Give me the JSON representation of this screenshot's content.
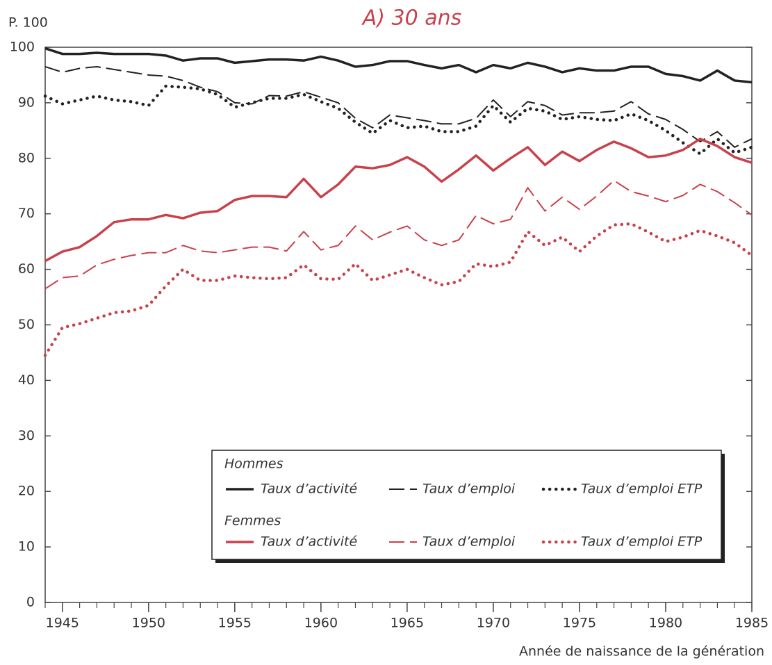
{
  "chart_data": {
    "type": "line",
    "title": "A) 30 ans",
    "ylabel": "P. 100",
    "xlabel": "Année de naissance de la génération",
    "x": [
      1944,
      1945,
      1946,
      1947,
      1948,
      1949,
      1950,
      1951,
      1952,
      1953,
      1954,
      1955,
      1956,
      1957,
      1958,
      1959,
      1960,
      1961,
      1962,
      1963,
      1964,
      1965,
      1966,
      1967,
      1968,
      1969,
      1970,
      1971,
      1972,
      1973,
      1974,
      1975,
      1976,
      1977,
      1978,
      1979,
      1980,
      1981,
      1982,
      1983,
      1984,
      1985
    ],
    "xlim": [
      1944,
      1985
    ],
    "xticks": [
      1945,
      1950,
      1955,
      1960,
      1965,
      1970,
      1975,
      1980,
      1985
    ],
    "ylim": [
      0,
      100
    ],
    "yticks": [
      0,
      10,
      20,
      30,
      40,
      50,
      60,
      70,
      80,
      90,
      100
    ],
    "legend_groups": [
      "Hommes",
      "Femmes"
    ],
    "series": [
      {
        "name": "Taux d’activité",
        "group": 0,
        "dash": "solid",
        "color": "#222222",
        "values": [
          99.8,
          98.8,
          98.8,
          99,
          98.8,
          98.8,
          98.8,
          98.5,
          97.6,
          98,
          98,
          97.2,
          97.5,
          97.8,
          97.8,
          97.6,
          98.3,
          97.6,
          96.5,
          96.8,
          97.5,
          97.5,
          96.8,
          96.2,
          96.8,
          95.5,
          96.8,
          96.2,
          97.2,
          96.5,
          95.5,
          96.2,
          95.8,
          95.8,
          96.5,
          96.5,
          95.2,
          94.8,
          94,
          95.8,
          94,
          93.7
        ]
      },
      {
        "name": "Taux d’emploi",
        "group": 0,
        "dash": "dashed",
        "color": "#222222",
        "values": [
          96.5,
          95.5,
          96.2,
          96.5,
          96,
          95.5,
          95,
          94.8,
          94,
          92.8,
          92,
          90,
          89.8,
          91.3,
          91.2,
          92,
          91,
          90,
          87.2,
          85.5,
          87.8,
          87.3,
          86.8,
          86.2,
          86.2,
          87.2,
          90.5,
          87.5,
          90.2,
          89.5,
          87.8,
          88.2,
          88.2,
          88.5,
          90.2,
          88,
          87,
          85.2,
          83,
          84.8,
          82,
          83.5
        ]
      },
      {
        "name": "Taux d’emploi ETP",
        "group": 0,
        "dash": "dotted",
        "color": "#222222",
        "values": [
          91.2,
          89.8,
          90.5,
          91.2,
          90.5,
          90.2,
          89.5,
          93,
          92.8,
          92.5,
          91.5,
          89.2,
          90,
          90.8,
          90.8,
          91.5,
          90.2,
          89,
          86.5,
          84.5,
          86.8,
          85.5,
          85.8,
          84.8,
          84.8,
          85.8,
          89.5,
          86.5,
          89,
          88.5,
          87,
          87.5,
          87,
          86.8,
          88,
          86.8,
          85,
          82.8,
          80.8,
          83.5,
          81,
          82
        ]
      },
      {
        "name": "Taux d’activité",
        "group": 1,
        "dash": "solid",
        "color": "#c8414b",
        "values": [
          61.5,
          63.2,
          64,
          66,
          68.5,
          69,
          69,
          69.8,
          69.2,
          70.2,
          70.5,
          72.5,
          73.2,
          73.2,
          73,
          76.3,
          73,
          75.3,
          78.5,
          78.2,
          78.8,
          80.2,
          78.5,
          75.8,
          78,
          80.5,
          77.8,
          80,
          82,
          78.8,
          81.2,
          79.5,
          81.5,
          83,
          81.8,
          80.2,
          80.5,
          81.5,
          83.5,
          82.2,
          80.2,
          79.2
        ]
      },
      {
        "name": "Taux d’emploi",
        "group": 1,
        "dash": "dashed",
        "color": "#c8414b",
        "values": [
          56.5,
          58.5,
          58.8,
          60.8,
          61.8,
          62.5,
          63,
          63,
          64.3,
          63.3,
          63,
          63.5,
          64,
          64,
          63.3,
          66.8,
          63.5,
          64.3,
          67.8,
          65.3,
          66.7,
          67.8,
          65.3,
          64.3,
          65.3,
          69.7,
          68.2,
          69,
          74.7,
          70.5,
          73,
          70.8,
          73.2,
          76,
          74,
          73.2,
          72.2,
          73.3,
          75.3,
          74,
          72,
          69.8
        ]
      },
      {
        "name": "Taux d’emploi ETP",
        "group": 1,
        "dash": "dotted",
        "color": "#c8414b",
        "values": [
          44.5,
          49.5,
          50.2,
          51.2,
          52.2,
          52.5,
          53.5,
          57,
          60,
          58,
          58,
          58.8,
          58.5,
          58.3,
          58.5,
          60.8,
          58.3,
          58.2,
          61,
          58,
          59,
          60,
          58.5,
          57.2,
          57.8,
          61,
          60.5,
          61.3,
          66.8,
          64.3,
          65.8,
          63.2,
          66,
          68,
          68.2,
          66.7,
          65,
          65.8,
          67,
          66,
          64.8,
          62.5
        ]
      }
    ]
  }
}
